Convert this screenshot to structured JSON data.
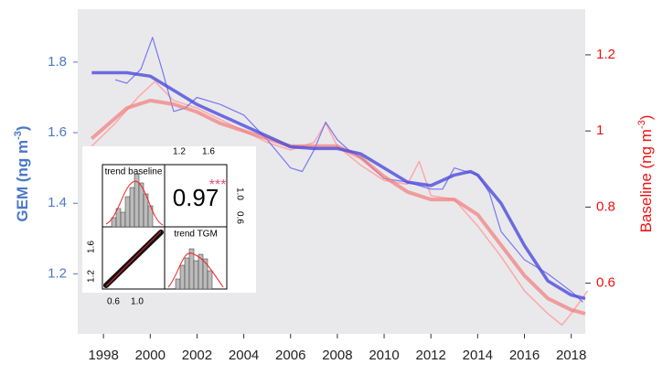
{
  "chart_data": {
    "type": "line",
    "xlim": [
      1996.9,
      2018.6
    ],
    "xticks": [
      1998,
      2000,
      2002,
      2004,
      2006,
      2008,
      2010,
      2012,
      2014,
      2016,
      2018
    ],
    "ylim": [
      1.03,
      1.95
    ],
    "yticks": [
      1.2,
      1.4,
      1.6,
      1.8
    ],
    "y2lim": [
      0.467,
      1.32
    ],
    "y2ticks": [
      0.6,
      0.8,
      1.0,
      1.2
    ],
    "ylabel": {
      "text": "GEM (ng m",
      "sup": "-3",
      "end": ")"
    },
    "y2label": {
      "text": "Baseline (ng m",
      "sup": "-3",
      "end": ")"
    },
    "series": [
      {
        "color": "#ff9c9c",
        "axis": "y2",
        "x": [
          1997.5,
          1998.5,
          1999.5,
          2000.2,
          2001,
          2002,
          2003,
          2004,
          2005,
          2006,
          2007,
          2007.5,
          2008,
          2009,
          2010,
          2011,
          2011.5,
          2012,
          2013,
          2014,
          2015,
          2016,
          2017,
          2017.6,
          2018,
          2018.7
        ],
        "values": [
          0.96,
          1.02,
          1.09,
          1.13,
          1.08,
          1.06,
          1.03,
          1.0,
          0.97,
          0.95,
          0.97,
          1.02,
          0.96,
          0.91,
          0.87,
          0.86,
          0.92,
          0.83,
          0.82,
          0.75,
          0.67,
          0.58,
          0.52,
          0.49,
          0.52,
          0.58
        ]
      },
      {
        "color": "#6b6bf0",
        "axis": "y",
        "x": [
          1998.5,
          1999,
          1999.6,
          2000.1,
          2000.5,
          2001,
          2001.5,
          2002,
          2003,
          2004,
          2005,
          2006,
          2006.5,
          2007,
          2007.5,
          2008,
          2008.5,
          2009,
          2010,
          2011,
          2012,
          2012.5,
          2013,
          2014,
          2014.5,
          2015,
          2016,
          2017,
          2018,
          2018.5
        ],
        "values": [
          1.75,
          1.74,
          1.78,
          1.87,
          1.78,
          1.66,
          1.67,
          1.7,
          1.68,
          1.65,
          1.58,
          1.5,
          1.49,
          1.55,
          1.63,
          1.58,
          1.55,
          1.53,
          1.47,
          1.46,
          1.44,
          1.44,
          1.5,
          1.48,
          1.43,
          1.32,
          1.24,
          1.2,
          1.15,
          1.12
        ]
      },
      {
        "color": "#f27a7a",
        "axis": "y2",
        "x": [
          1997.5,
          1999,
          2000,
          2001,
          2002,
          2003,
          2004,
          2005,
          2006,
          2007,
          2008,
          2009,
          2010,
          2011,
          2012,
          2013,
          2014,
          2015,
          2016,
          2017,
          2018,
          2018.6
        ],
        "values": [
          0.98,
          1.06,
          1.08,
          1.07,
          1.05,
          1.02,
          1.0,
          0.98,
          0.96,
          0.96,
          0.96,
          0.93,
          0.88,
          0.84,
          0.82,
          0.82,
          0.78,
          0.7,
          0.62,
          0.56,
          0.53,
          0.52
        ]
      },
      {
        "color": "#4b4bdc",
        "axis": "y",
        "x": [
          1997.5,
          1999,
          2000,
          2001,
          2002,
          2003,
          2004,
          2005,
          2006,
          2007,
          2008,
          2009,
          2010,
          2011,
          2012,
          2013,
          2013.7,
          2014,
          2015,
          2016,
          2017,
          2018,
          2018.6
        ],
        "values": [
          1.77,
          1.77,
          1.76,
          1.72,
          1.68,
          1.65,
          1.62,
          1.59,
          1.56,
          1.555,
          1.555,
          1.54,
          1.5,
          1.46,
          1.45,
          1.48,
          1.49,
          1.48,
          1.4,
          1.28,
          1.18,
          1.14,
          1.13
        ]
      }
    ]
  },
  "inset": {
    "label_baseline": "trend baseline",
    "label_tgm": "trend TGM",
    "r": "0.97",
    "stars": "***",
    "top_ticks": [
      "1.2",
      "1.6"
    ],
    "right_ticks": [
      "1.0",
      "0.6"
    ],
    "left_ticks": [
      "1.6",
      "1.2"
    ],
    "bottom_ticks": [
      "0.6",
      "1.0"
    ]
  }
}
